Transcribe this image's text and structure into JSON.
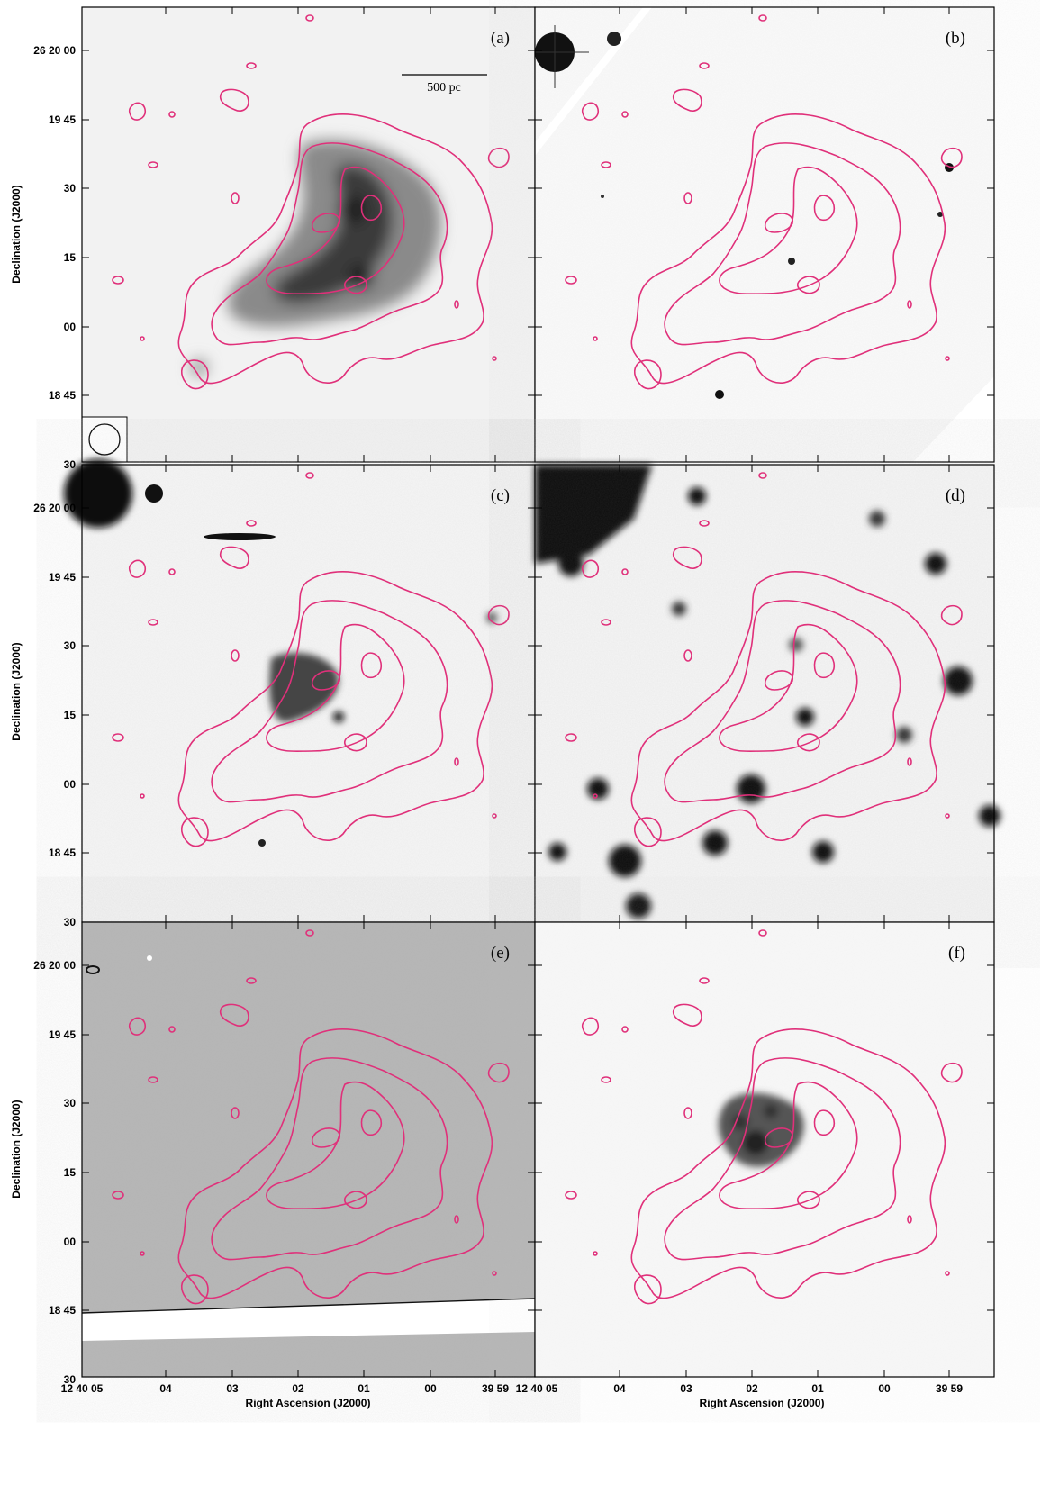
{
  "panels": [
    {
      "id": "a",
      "label": "(a)",
      "style": "smooth-gray"
    },
    {
      "id": "b",
      "label": "(b)",
      "style": "white-field"
    },
    {
      "id": "c",
      "label": "(c)",
      "style": "noisy-light"
    },
    {
      "id": "d",
      "label": "(d)",
      "style": "blotchy"
    },
    {
      "id": "e",
      "label": "(e)",
      "style": "mid-gray"
    },
    {
      "id": "f",
      "label": "(f)",
      "style": "white-smooth"
    }
  ],
  "scale_bar_label": "500 pc",
  "y_axis_label": "Declination (J2000)",
  "x_axis_label": "Right Ascension (J2000)",
  "y_ticks": [
    "26 20 00",
    "19 45",
    "30",
    "15",
    "00",
    "18 45",
    "30"
  ],
  "x_ticks": [
    "12 40 05",
    "04",
    "03",
    "02",
    "01",
    "00",
    "39 59"
  ],
  "contour_color": "#e0307a"
}
